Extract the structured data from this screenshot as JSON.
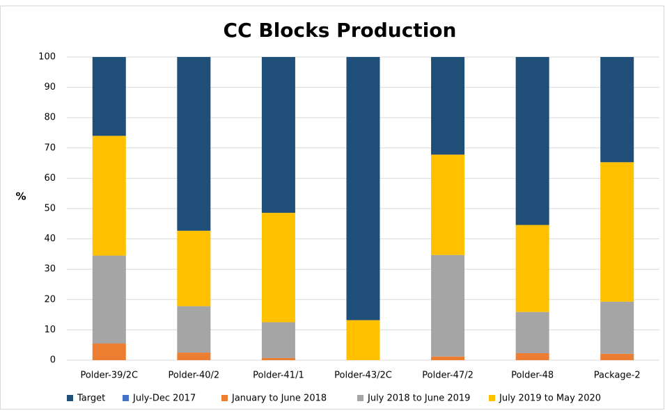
{
  "chart_data": {
    "type": "stacked_bar",
    "title": "CC Blocks Production",
    "ylabel": "%",
    "categories": [
      "Polder-39/2C",
      "Polder-40/2",
      "Polder-41/1",
      "Polder-43/2C",
      "Polder-47/2",
      "Polder-48",
      "Package-2"
    ],
    "series": [
      {
        "name": "July-Dec 2017",
        "color": "#4472c4",
        "values": [
          0,
          0,
          0,
          0,
          0,
          0,
          0
        ]
      },
      {
        "name": "January  to June 2018",
        "color": "#ed7d31",
        "values": [
          5.5,
          2.5,
          0.7,
          0,
          1.2,
          2.3,
          2.1
        ]
      },
      {
        "name": "July 2018 to June 2019",
        "color": "#a5a5a5",
        "values": [
          29,
          15.3,
          11.8,
          0,
          33.5,
          13.6,
          17.2
        ]
      },
      {
        "name": "July 2019 to May 2020",
        "color": "#ffc000",
        "values": [
          39.5,
          24.9,
          36.1,
          13.2,
          33.1,
          28.7,
          46
        ]
      },
      {
        "name": "Target",
        "color": "#1f4e79",
        "values": [
          26,
          57.3,
          51.4,
          86.8,
          32.2,
          55.4,
          34.7
        ]
      }
    ],
    "legend_order": [
      4,
      0,
      1,
      2,
      3
    ],
    "ylim": [
      0,
      100
    ],
    "yticks": [
      0,
      10,
      20,
      30,
      40,
      50,
      60,
      70,
      80,
      90,
      100
    ],
    "grid": true
  }
}
